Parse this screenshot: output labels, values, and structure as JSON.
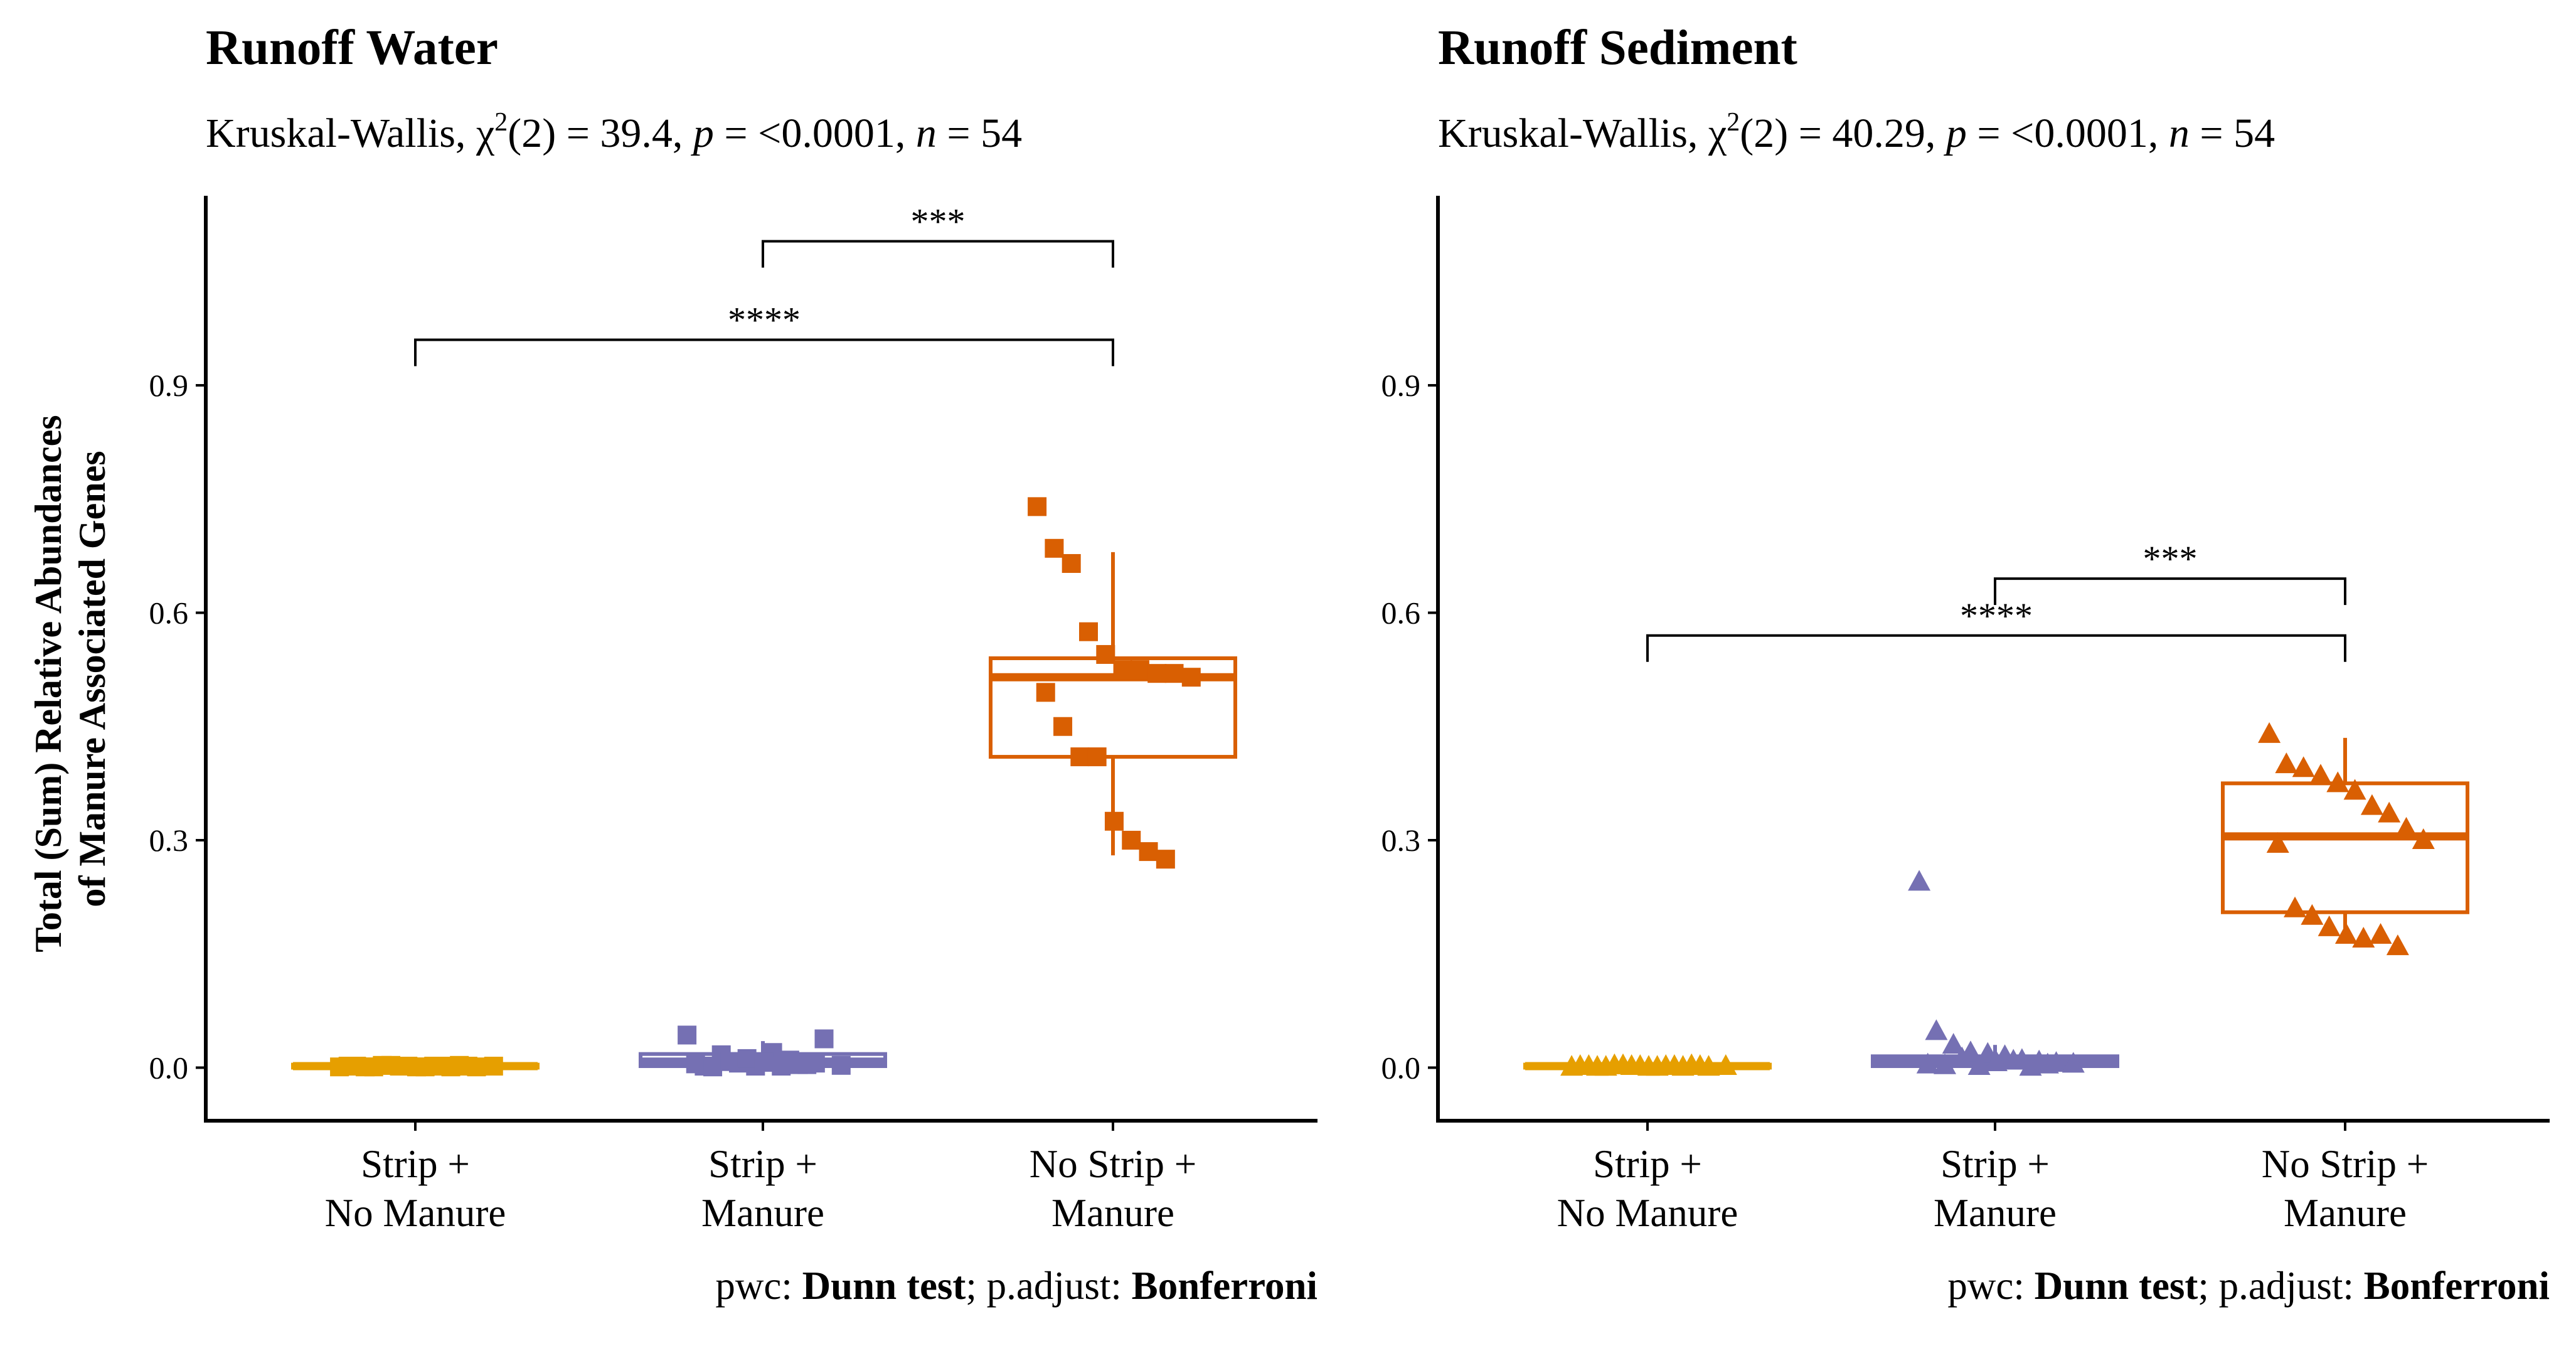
{
  "chart_data": [
    {
      "type": "box",
      "title": "Runoff Water",
      "subtitle": {
        "prefix": "Kruskal-Wallis, ",
        "stat_symbol": "χ",
        "stat_sup": "2",
        "stat_df": "(2) = 39.4, ",
        "p_label": "p",
        "p_value": " = <0.0001, ",
        "n_label": "n",
        "n_value": " = 54"
      },
      "ylabel_lines": [
        "Total (Sum) Relative Abundances",
        "of Manure Associated Genes"
      ],
      "ylim": [
        -0.07,
        1.15
      ],
      "y_ticks": [
        {
          "value": 0.0,
          "label": "0.0"
        },
        {
          "value": 0.3,
          "label": "0.3"
        },
        {
          "value": 0.6,
          "label": "0.6"
        },
        {
          "value": 0.9,
          "label": "0.9"
        }
      ],
      "categories": [
        [
          "Strip +",
          "No Manure"
        ],
        [
          "Strip +",
          "Manure"
        ],
        [
          "No Strip +",
          "Manure"
        ]
      ],
      "marker": "square",
      "groups": [
        {
          "color": "#E69F00",
          "box": {
            "q1": 0.0,
            "median": 0.002,
            "q3": 0.004,
            "lower": 0.0,
            "upper": 0.004
          },
          "points": [
            0.001,
            0.002,
            0.001,
            0.003,
            0.002,
            0.001,
            0.002,
            0.003,
            0.001,
            0.002,
            0.002,
            0.001,
            0.003,
            0.002,
            0.001,
            0.002,
            0.001,
            0.002
          ]
        },
        {
          "color": "#7570B3",
          "box": {
            "q1": 0.002,
            "median": 0.008,
            "q3": 0.018,
            "lower": 0.0,
            "upper": 0.035
          },
          "points": [
            0.043,
            0.002,
            0.017,
            0.006,
            0.002,
            0.02,
            0.01,
            0.004,
            0.038,
            0.003,
            0.005,
            0.001,
            0.008,
            0.012,
            0.007,
            0.002,
            0.004,
            0.006
          ]
        },
        {
          "color": "#D95F02",
          "box": {
            "q1": 0.41,
            "median": 0.515,
            "q3": 0.54,
            "lower": 0.28,
            "upper": 0.68
          },
          "points": [
            0.74,
            0.685,
            0.665,
            0.575,
            0.545,
            0.525,
            0.525,
            0.52,
            0.52,
            0.515,
            0.495,
            0.45,
            0.41,
            0.41,
            0.325,
            0.3,
            0.285,
            0.275
          ]
        }
      ],
      "comparisons": [
        {
          "from": 1,
          "to": 2,
          "y": 1.09,
          "label": "***"
        },
        {
          "from": 0,
          "to": 2,
          "y": 0.96,
          "label": "****"
        }
      ],
      "caption": {
        "pwc_label": "pwc: ",
        "pwc_value": "Dunn test",
        "sep": "; p.adjust: ",
        "adjust_value": "Bonferroni"
      }
    },
    {
      "type": "box",
      "title": "Runoff Sediment",
      "subtitle": {
        "prefix": "Kruskal-Wallis, ",
        "stat_symbol": "χ",
        "stat_sup": "2",
        "stat_df": "(2) = 40.29, ",
        "p_label": "p",
        "p_value": " = <0.0001, ",
        "n_label": "n",
        "n_value": " = 54"
      },
      "ylim": [
        -0.07,
        1.15
      ],
      "y_ticks": [
        {
          "value": 0.0,
          "label": "0.0"
        },
        {
          "value": 0.3,
          "label": "0.3"
        },
        {
          "value": 0.6,
          "label": "0.6"
        },
        {
          "value": 0.9,
          "label": "0.9"
        }
      ],
      "categories": [
        [
          "Strip +",
          "No Manure"
        ],
        [
          "Strip +",
          "Manure"
        ],
        [
          "No Strip +",
          "Manure"
        ]
      ],
      "marker": "triangle",
      "groups": [
        {
          "color": "#E69F00",
          "box": {
            "q1": 0.0,
            "median": 0.002,
            "q3": 0.004,
            "lower": 0.0,
            "upper": 0.004
          },
          "points": [
            0.001,
            0.002,
            0.001,
            0.003,
            0.002,
            0.001,
            0.002,
            0.003,
            0.001,
            0.002,
            0.002,
            0.001,
            0.003,
            0.002,
            0.001,
            0.002,
            0.001,
            0.002
          ]
        },
        {
          "color": "#7570B3",
          "box": {
            "q1": 0.002,
            "median": 0.008,
            "q3": 0.015,
            "lower": 0.0,
            "upper": 0.03
          },
          "points": [
            0.245,
            0.048,
            0.03,
            0.02,
            0.018,
            0.015,
            0.01,
            0.008,
            0.006,
            0.005,
            0.004,
            0.003,
            0.012,
            0.002,
            0.007,
            0.009,
            0.001,
            0.004
          ]
        },
        {
          "color": "#D95F02",
          "box": {
            "q1": 0.205,
            "median": 0.305,
            "q3": 0.375,
            "lower": 0.165,
            "upper": 0.435
          },
          "points": [
            0.44,
            0.4,
            0.395,
            0.385,
            0.375,
            0.365,
            0.345,
            0.335,
            0.315,
            0.3,
            0.295,
            0.21,
            0.2,
            0.185,
            0.175,
            0.17,
            0.175,
            0.16
          ]
        }
      ],
      "comparisons": [
        {
          "from": 1,
          "to": 2,
          "y": 0.645,
          "label": "***"
        },
        {
          "from": 0,
          "to": 2,
          "y": 0.57,
          "label": "****"
        }
      ],
      "caption": {
        "pwc_label": "pwc: ",
        "pwc_value": "Dunn test",
        "sep": "; p.adjust: ",
        "adjust_value": "Bonferroni"
      }
    }
  ]
}
